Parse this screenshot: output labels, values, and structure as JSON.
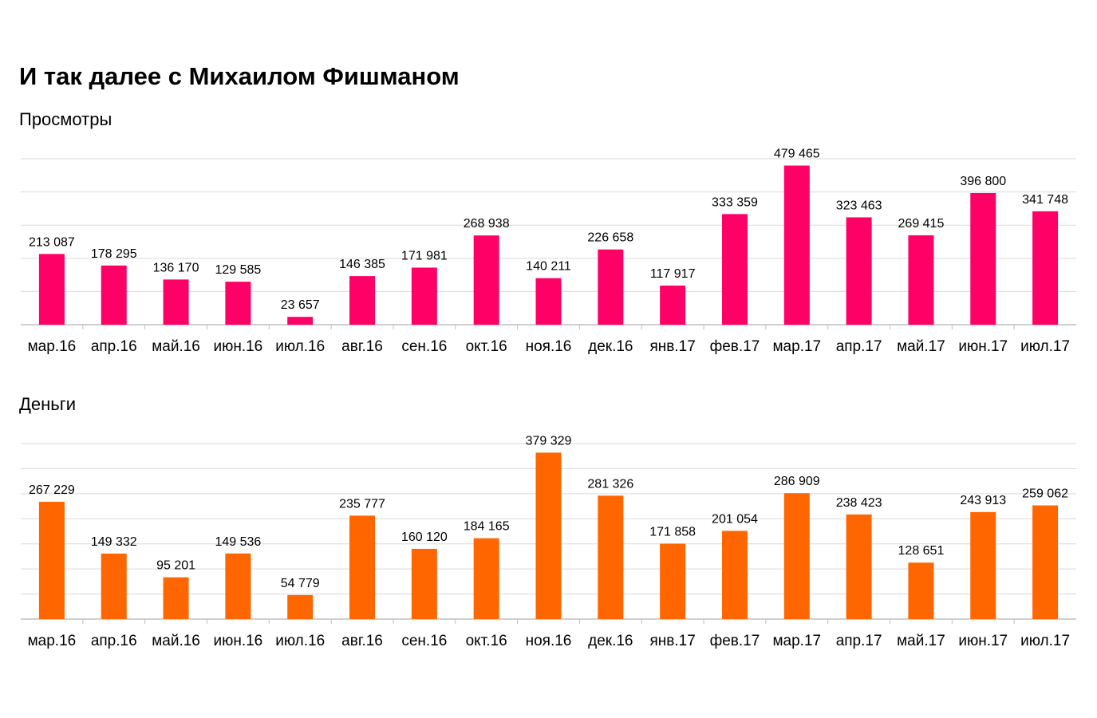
{
  "title": "И так далее с Михаилом Фишманом",
  "chart_data": [
    {
      "type": "bar",
      "title": "Просмотры",
      "color": "#ff0066",
      "grid": true,
      "ylim": [
        0,
        500000
      ],
      "categories": [
        "мар.16",
        "апр.16",
        "май.16",
        "июн.16",
        "июл.16",
        "авг.16",
        "сен.16",
        "окт.16",
        "ноя.16",
        "дек.16",
        "янв.17",
        "фев.17",
        "мар.17",
        "апр.17",
        "май.17",
        "июн.17",
        "июл.17"
      ],
      "values": [
        213087,
        178295,
        136170,
        129585,
        23657,
        146385,
        171981,
        268938,
        140211,
        226658,
        117917,
        333359,
        479465,
        323463,
        269415,
        396800,
        341748
      ],
      "labels": [
        "213 087",
        "178 295",
        "136 170",
        "129 585",
        "23 657",
        "146 385",
        "171 981",
        "268 938",
        "140 211",
        "226 658",
        "117 917",
        "333 359",
        "479 465",
        "323 463",
        "269 415",
        "396 800",
        "341 748"
      ]
    },
    {
      "type": "bar",
      "title": "Деньги",
      "color": "#ff6600",
      "grid": true,
      "ylim": [
        0,
        400000
      ],
      "categories": [
        "мар.16",
        "апр.16",
        "май.16",
        "июн.16",
        "июл.16",
        "авг.16",
        "сен.16",
        "окт.16",
        "ноя.16",
        "дек.16",
        "янв.17",
        "фев.17",
        "мар.17",
        "апр.17",
        "май.17",
        "июн.17",
        "июл.17"
      ],
      "values": [
        267229,
        149332,
        95201,
        149536,
        54779,
        235777,
        160120,
        184165,
        379329,
        281326,
        171858,
        201054,
        286909,
        238423,
        128651,
        243913,
        259062
      ],
      "labels": [
        "267 229",
        "149 332",
        "95 201",
        "149 536",
        "54 779",
        "235 777",
        "160 120",
        "184 165",
        "379 329",
        "281 326",
        "171 858",
        "201 054",
        "286 909",
        "238 423",
        "128 651",
        "243 913",
        "259 062"
      ]
    }
  ]
}
